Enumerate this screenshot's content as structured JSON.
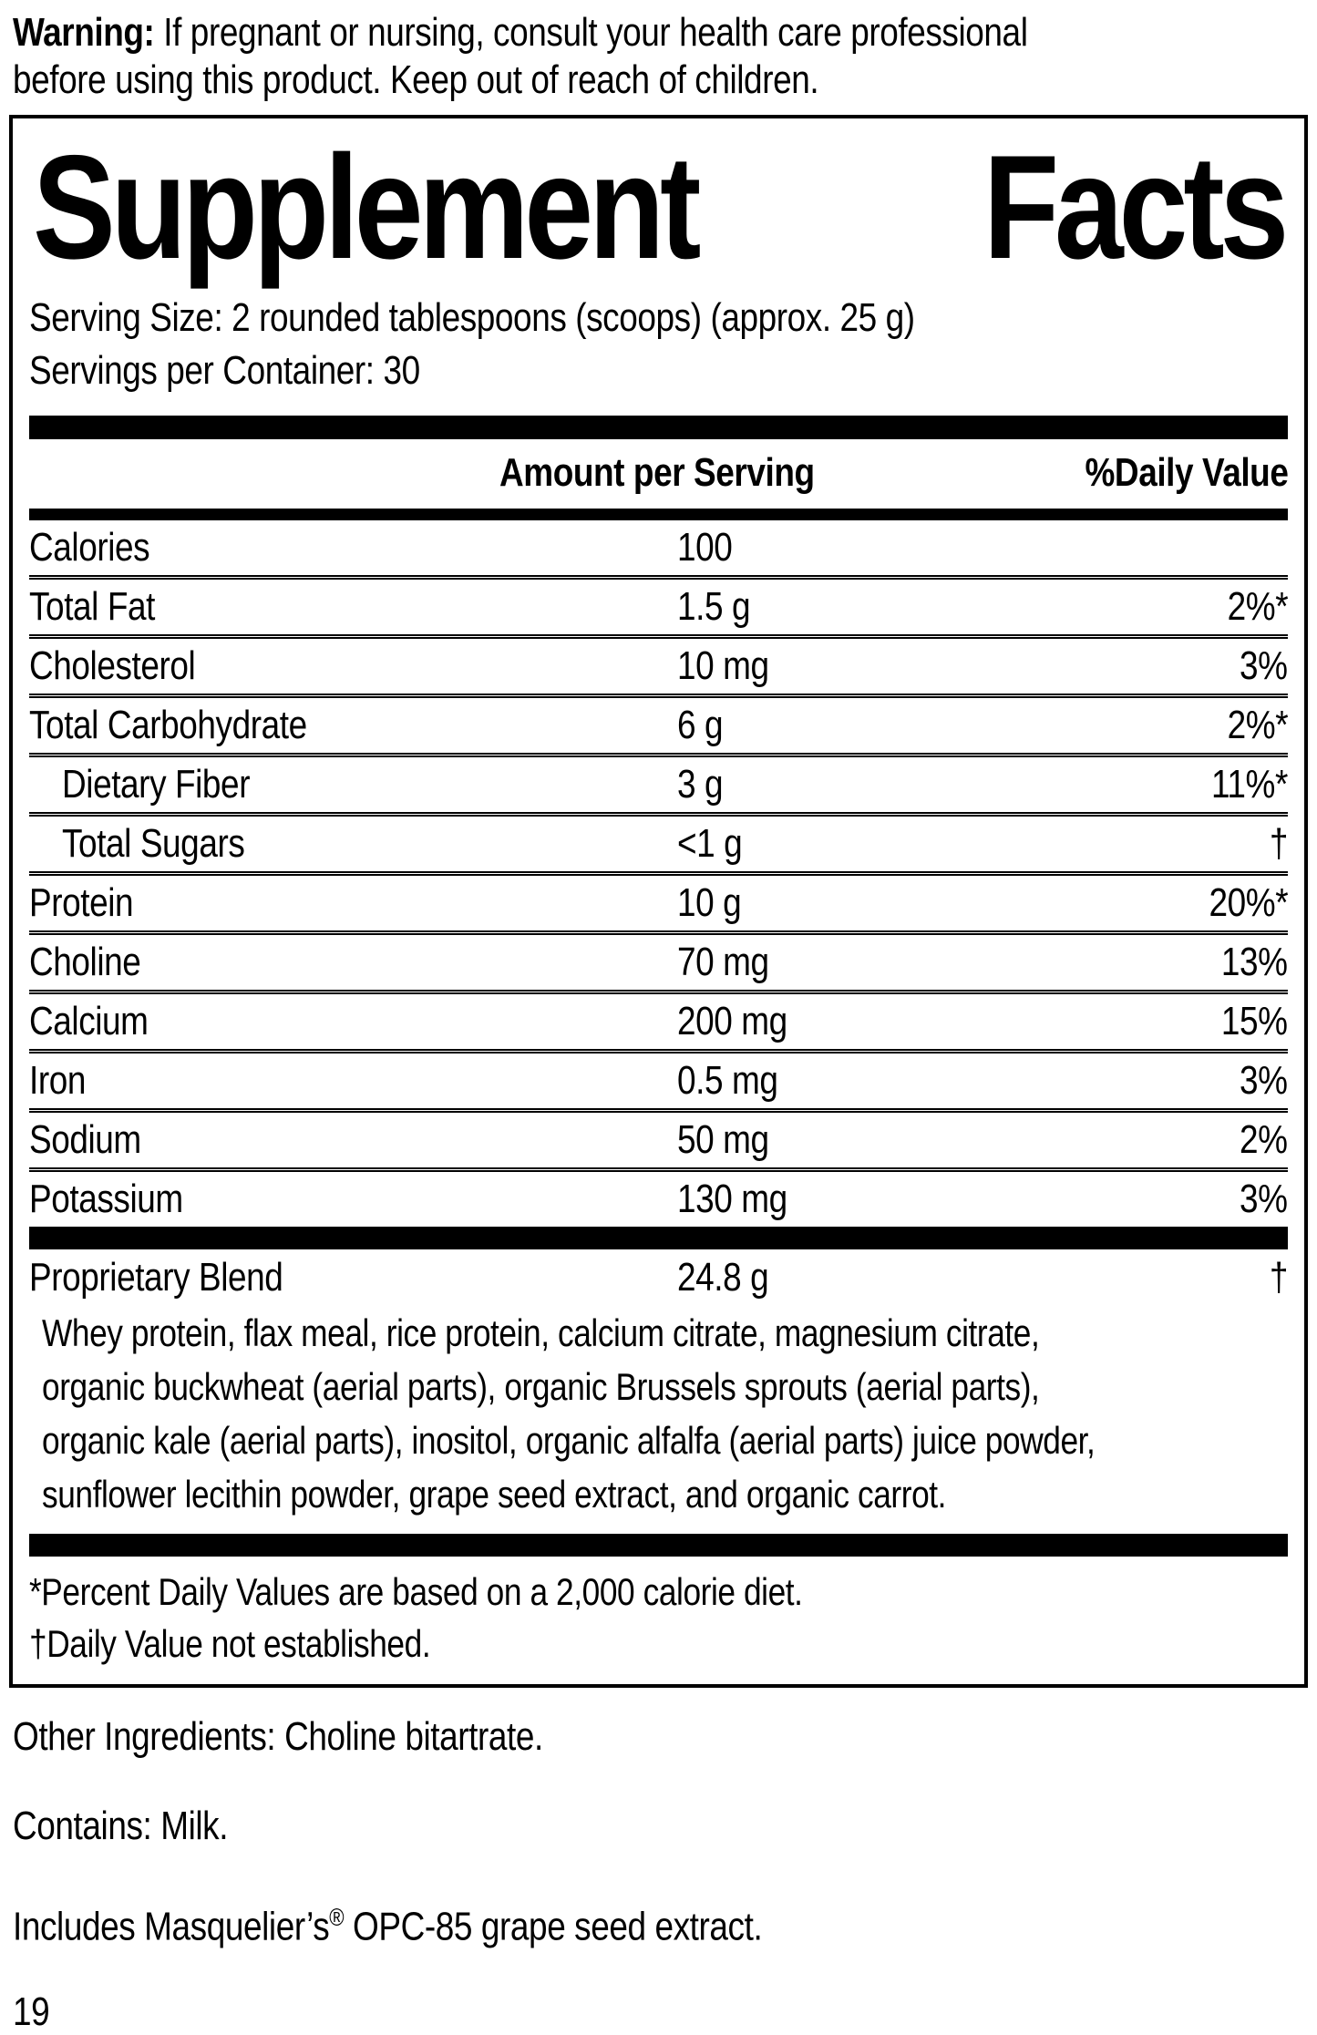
{
  "colors": {
    "ink": "#000000",
    "background": "#ffffff"
  },
  "warning": {
    "label": "Warning:",
    "line1": "If pregnant or nursing, consult your health care professional",
    "line2": "before using this product. Keep out of reach of children."
  },
  "panel": {
    "title_left": "Supplement",
    "title_right": "Facts",
    "serving_size": "Serving Size: 2 rounded tablespoons (scoops) (approx. 25 g)",
    "servings_per_container": "Servings per Container: 30",
    "columns": {
      "amount": "Amount per Serving",
      "daily_value": "%Daily Value"
    },
    "rows": [
      {
        "label": "Calories",
        "amount": "100",
        "dv": ""
      },
      {
        "label": "Total Fat",
        "amount": "1.5 g",
        "dv": "2%*"
      },
      {
        "label": "Cholesterol",
        "amount": "10 mg",
        "dv": "3%"
      },
      {
        "label": "Total Carbohydrate",
        "amount": "6 g",
        "dv": "2%*"
      },
      {
        "label": "Dietary Fiber",
        "amount": "3 g",
        "dv": "11%*"
      },
      {
        "label": "Total Sugars",
        "amount": "<1 g",
        "dv": "†"
      },
      {
        "label": "Protein",
        "amount": "10 g",
        "dv": "20%*"
      },
      {
        "label": "Choline",
        "amount": "70 mg",
        "dv": "13%"
      },
      {
        "label": "Calcium",
        "amount": "200 mg",
        "dv": "15%"
      },
      {
        "label": "Iron",
        "amount": "0.5 mg",
        "dv": "3%"
      },
      {
        "label": "Sodium",
        "amount": "50 mg",
        "dv": "2%"
      },
      {
        "label": "Potassium",
        "amount": "130 mg",
        "dv": "3%"
      }
    ],
    "blend": {
      "label": "Proprietary Blend",
      "amount": "24.8 g",
      "dv": "†",
      "lines": [
        "Whey protein, flax meal, rice protein, calcium citrate, magnesium citrate,",
        "organic buckwheat (aerial parts), organic Brussels sprouts (aerial parts),",
        "organic kale (aerial parts), inositol, organic alfalfa (aerial parts) juice powder,",
        "sunflower lecithin powder, grape seed extract, and organic carrot."
      ]
    },
    "footnotes": [
      "*Percent Daily Values are based on a 2,000 calorie diet.",
      "†Daily Value not established."
    ]
  },
  "other_ingredients": "Other Ingredients: Choline bitartrate.",
  "contains": "Contains: Milk.",
  "includes": {
    "pre": "Includes Masquelier’s",
    "sup": "®",
    "post": " OPC-85 grape seed extract."
  },
  "page_number": "19"
}
